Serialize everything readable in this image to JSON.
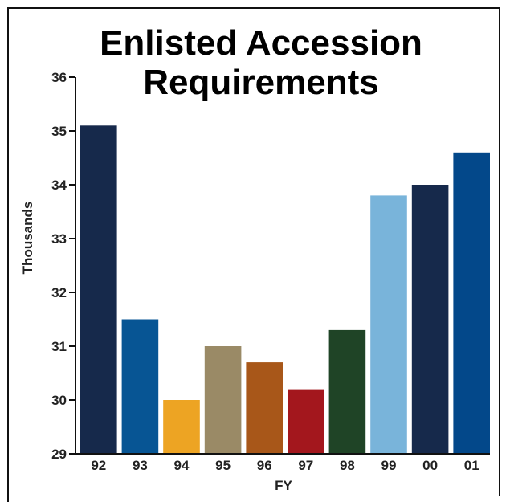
{
  "chart_data": {
    "type": "bar",
    "title_lines": [
      "Enlisted Accession",
      "Requirements"
    ],
    "categories": [
      "92",
      "93",
      "94",
      "95",
      "96",
      "97",
      "98",
      "99",
      "00",
      "01"
    ],
    "values": [
      35.1,
      31.5,
      30.0,
      31.0,
      30.7,
      30.2,
      31.3,
      33.8,
      34.0,
      34.6
    ],
    "colors": [
      "#16294b",
      "#075594",
      "#eda423",
      "#9a8a66",
      "#a85719",
      "#a3171d",
      "#1f4426",
      "#79b4da",
      "#16294b",
      "#03488a"
    ],
    "xlabel": "FY",
    "ylabel": "Thousands",
    "ylim": [
      29,
      36
    ],
    "yticks": [
      29,
      30,
      31,
      32,
      33,
      34,
      35,
      36
    ],
    "grid": false,
    "legend": "none"
  }
}
